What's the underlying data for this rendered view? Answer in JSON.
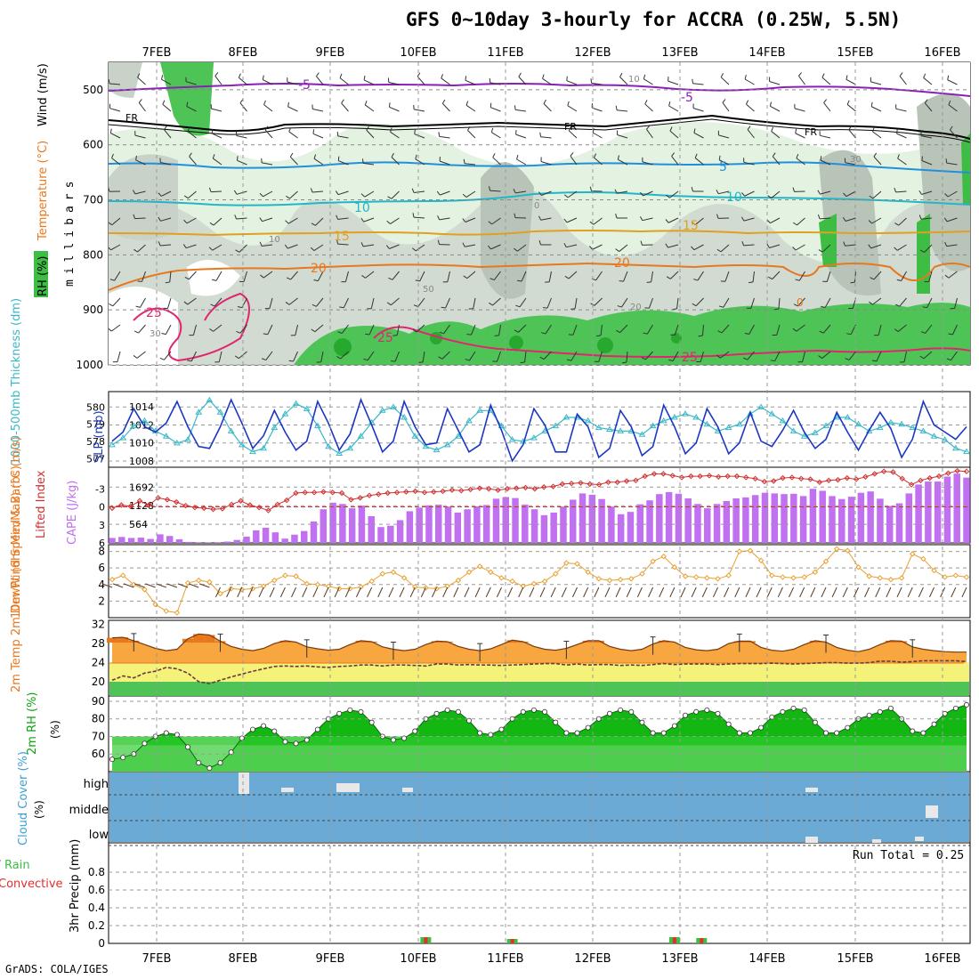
{
  "title": "GFS 0~10day 3-hourly for ACCRA (0.25W, 5.5N)",
  "credit": "GrADS: COLA/IGES",
  "colors": {
    "rh_green": "#3ebd45",
    "rh_light": "#e3f2e1",
    "rh_grey": "#c8d2c8",
    "temp_red": "#e2256f",
    "temp_orange": "#e8781e",
    "temp_gold": "#e0a020",
    "temp_cyan": "#22b6c8",
    "temp_blue": "#2090dc",
    "temp_purple": "#8a1fb8",
    "slp": "#1b37c2",
    "thickness": "#3ab8c8",
    "lifted": "#d03030",
    "cape": "#c070f0",
    "wind10": "#e8a030",
    "cloud": "#6aaad4",
    "temp_fill": "#f7a640",
    "dew_fill": "#f5f27a",
    "rh2_dark": "#0fa30f",
    "rain": "#3fbe3f",
    "conv": "#e03030"
  },
  "chart_data": [
    {
      "id": "upper_air",
      "type": "contour",
      "x_dates": [
        "7FEB",
        "8FEB",
        "9FEB",
        "10FEB",
        "11FEB",
        "12FEB",
        "13FEB",
        "14FEB",
        "15FEB",
        "16FEB"
      ],
      "ylabel_parts": [
        "RH (%)",
        "Temperature (°C)",
        "Wind (m/s)"
      ],
      "yaxis_label": "millibars",
      "yticks": [
        500,
        600,
        700,
        800,
        900,
        1000
      ],
      "contour_labels": [
        "-5",
        "-5",
        "FR",
        "FR",
        "FR",
        "5",
        "10",
        "10",
        "15",
        "15",
        "20",
        "20",
        "25",
        "25",
        "25",
        "0",
        "10",
        "30",
        "50",
        "30",
        "0",
        "10",
        "20"
      ]
    },
    {
      "id": "slp_thickness",
      "type": "line",
      "ylabel_left": "1000-500mb Thickness (dm)",
      "ylabel_right": "SLP (mb)",
      "yticks_left": [
        580,
        579,
        578,
        577
      ],
      "yticks_right": [
        1014,
        1012,
        1010,
        1008
      ],
      "ylim_slp": [
        1007.5,
        1015.5
      ],
      "ylim_thick": [
        576.6,
        580.8
      ],
      "series": [
        {
          "name": "SLP",
          "values": [
            1010.2,
            1011.2,
            1013.8,
            1011.8,
            1011.2,
            1012.2,
            1014.6,
            1011.8,
            1009.6,
            1009.4,
            1011.8,
            1014.8,
            1012.2,
            1009.4,
            1010.8,
            1013.6,
            1011.2,
            1009.2,
            1010.2,
            1014.6,
            1012.2,
            1009.2,
            1011.0,
            1014.8,
            1012.0,
            1009.0,
            1010.2,
            1014.6,
            1011.8,
            1009.8,
            1010.0,
            1013.8,
            1011.4,
            1009.0,
            1009.8,
            1014.2,
            1011.4,
            1008.0,
            1009.8,
            1013.8,
            1012.0,
            1009.0,
            1009.0,
            1013.2,
            1011.8,
            1008.4,
            1009.4,
            1013.6,
            1011.8,
            1008.6,
            1009.6,
            1014.2,
            1011.8,
            1008.8,
            1010.0,
            1013.8,
            1011.8,
            1008.8,
            1010.0,
            1013.4,
            1010.2,
            1009.6,
            1011.4,
            1013.6,
            1011.2,
            1009.4,
            1010.4,
            1013.4,
            1011.2,
            1009.2,
            1011.4,
            1013.4,
            1011.6,
            1008.4,
            1010.4,
            1014.6,
            1012.0,
            1011.2,
            1010.4,
            1011.8
          ]
        },
        {
          "name": "Thickness",
          "values": [
            577.8,
            578.2,
            578.9,
            579.2,
            578.6,
            578.3,
            577.9,
            578.1,
            579.7,
            580.4,
            579.7,
            578.6,
            577.8,
            577.4,
            577.6,
            578.8,
            579.6,
            580.2,
            579.9,
            578.9,
            577.7,
            577.3,
            577.6,
            578.3,
            579.1,
            579.8,
            580.0,
            579.4,
            578.3,
            577.7,
            577.5,
            577.8,
            578.3,
            579.2,
            579.8,
            579.8,
            578.9,
            578.1,
            578.0,
            578.2,
            578.6,
            578.9,
            579.4,
            579.4,
            579.2,
            578.8,
            578.7,
            578.6,
            578.6,
            578.4,
            578.9,
            579.2,
            579.4,
            579.6,
            579.4,
            579.0,
            578.6,
            578.8,
            579.0,
            579.6,
            580.0,
            579.6,
            579.2,
            578.6,
            578.3,
            578.5,
            578.9,
            579.4,
            579.4,
            579.0,
            578.6,
            578.8,
            579.1,
            579.0,
            578.8,
            578.6,
            578.3,
            578.1,
            577.6,
            577.4
          ]
        }
      ]
    },
    {
      "id": "cape_li",
      "type": "bar+line",
      "ylabel_left": "Lifted Index",
      "ylabel_right": "CAPE (J/kg)",
      "yticks_left": [
        "-3",
        "0",
        "3",
        "6"
      ],
      "yticks_right": [
        "1692",
        "1128",
        "564"
      ],
      "ylim_cape": [
        0,
        2240
      ],
      "ylim_li": [
        6,
        -6.3
      ],
      "series": [
        {
          "name": "CAPE",
          "values": [
            150,
            180,
            150,
            160,
            120,
            260,
            210,
            110,
            30,
            20,
            10,
            20,
            40,
            90,
            190,
            380,
            460,
            320,
            130,
            250,
            360,
            650,
            1020,
            1220,
            1180,
            1050,
            1130,
            810,
            480,
            520,
            690,
            960,
            1070,
            1140,
            1160,
            1100,
            920,
            1020,
            1110,
            1150,
            1340,
            1390,
            1360,
            1160,
            1020,
            840,
            920,
            1100,
            1310,
            1500,
            1460,
            1330,
            1100,
            870,
            940,
            1170,
            1290,
            1480,
            1540,
            1490,
            1350,
            1180,
            1050,
            1180,
            1270,
            1350,
            1380,
            1450,
            1520,
            1500,
            1480,
            1490,
            1420,
            1640,
            1580,
            1420,
            1330,
            1400,
            1520,
            1560,
            1340,
            1120,
            1200,
            1500,
            1770,
            1860,
            1860,
            2010,
            2100,
            1980
          ]
        },
        {
          "name": "Lifted Index",
          "values": [
            0.2,
            -0.3,
            -0.1,
            -1.0,
            -0.3,
            -1.5,
            -1.2,
            -0.8,
            -0.2,
            0.1,
            0.2,
            0.4,
            0.3,
            -0.4,
            -1.0,
            -0.3,
            0.1,
            0.6,
            -0.4,
            -1.1,
            -2.3,
            -2.4,
            -2.4,
            -2.5,
            -2.4,
            -2.3,
            -1.2,
            -1.5,
            -1.9,
            -2.1,
            -2.3,
            -2.4,
            -2.5,
            -2.6,
            -2.4,
            -2.5,
            -2.6,
            -2.8,
            -2.7,
            -2.9,
            -3.1,
            -3.0,
            -2.8,
            -3.0,
            -3.1,
            -3.2,
            -3.0,
            -3.3,
            -3.4,
            -3.8,
            -3.9,
            -4.0,
            -3.8,
            -3.7,
            -4.1,
            -4.1,
            -4.3,
            -4.4,
            -5.1,
            -5.5,
            -5.5,
            -5.2,
            -4.9,
            -5.1,
            -5.1,
            -5.2,
            -5.0,
            -5.1,
            -5.1,
            -4.9,
            -4.7,
            -4.2,
            -4.3,
            -4.8,
            -4.9,
            -4.7,
            -4.6,
            -4.1,
            -4.4,
            -4.5,
            -4.8,
            -4.6,
            -5.0,
            -5.5,
            -5.9,
            -5.8,
            -4.7,
            -3.7,
            -4.4,
            -4.8,
            -5.1,
            -5.6,
            -6.0,
            -5.9
          ]
        }
      ]
    },
    {
      "id": "wind10m",
      "type": "line+barbs",
      "ylabel": "10m Wind Speed & Barbs (m/s)",
      "yticks": [
        8,
        6,
        4,
        2
      ],
      "ylim": [
        0,
        8.6
      ],
      "values": [
        4.6,
        5.1,
        4.0,
        3.4,
        1.6,
        0.8,
        0.6,
        4.2,
        4.5,
        4.3,
        2.9,
        3.5,
        3.4,
        3.5,
        3.8,
        4.5,
        5.1,
        5.0,
        4.1,
        4.0,
        3.8,
        3.5,
        3.5,
        3.7,
        4.4,
        5.3,
        5.5,
        4.8,
        3.7,
        3.6,
        3.5,
        3.8,
        4.5,
        5.5,
        6.2,
        5.5,
        4.8,
        4.4,
        3.8,
        4.1,
        4.4,
        5.3,
        6.6,
        6.5,
        5.5,
        4.7,
        4.5,
        4.6,
        4.7,
        5.3,
        6.8,
        7.4,
        6.1,
        5.0,
        4.9,
        4.8,
        4.7,
        5.1,
        8.0,
        8.1,
        6.9,
        5.1,
        4.9,
        4.8,
        4.9,
        5.5,
        6.8,
        8.3,
        8.1,
        6.1,
        5.0,
        4.8,
        4.6,
        4.8,
        7.7,
        7.1,
        5.7,
        4.9,
        5.1,
        4.9
      ]
    },
    {
      "id": "temp2m",
      "type": "area",
      "ylabel": "2m Temp 2m DewPt (6hr Min/Max) (°C)",
      "yticks": [
        32,
        28,
        24,
        20
      ],
      "ylim": [
        17,
        32.5
      ],
      "series": [
        {
          "name": "2m Temp",
          "values": [
            29.2,
            29.3,
            28.6,
            27.8,
            27.0,
            26.5,
            26.8,
            29.0,
            30.0,
            29.8,
            28.5,
            27.4,
            26.8,
            26.5,
            27.0,
            28.0,
            28.6,
            28.3,
            27.3,
            26.9,
            26.6,
            26.8,
            27.8,
            28.6,
            28.4,
            27.3,
            26.8,
            26.5,
            26.8,
            27.8,
            28.5,
            28.4,
            27.4,
            26.8,
            26.5,
            26.9,
            27.8,
            28.7,
            28.4,
            27.4,
            26.8,
            26.6,
            27.0,
            27.8,
            28.6,
            28.6,
            27.4,
            26.8,
            26.5,
            26.8,
            27.9,
            28.6,
            28.3,
            27.2,
            26.7,
            26.5,
            26.8,
            28.0,
            28.5,
            28.5,
            27.2,
            26.6,
            26.4,
            26.8,
            27.8,
            28.6,
            28.3,
            27.2,
            26.6,
            26.3,
            26.8,
            27.8,
            28.6,
            28.5,
            27.3,
            26.8,
            26.5,
            26.3,
            26.2,
            26.2
          ]
        },
        {
          "name": "2m DewPt",
          "values": [
            20.3,
            21.2,
            20.8,
            21.8,
            22.2,
            23.0,
            22.7,
            21.8,
            20.0,
            19.6,
            20.3,
            21.0,
            21.6,
            22.2,
            22.7,
            23.2,
            23.3,
            23.2,
            23.3,
            23.1,
            23.0,
            23.2,
            23.3,
            23.5,
            23.5,
            23.3,
            23.5,
            23.5,
            23.4,
            23.3,
            23.7,
            23.7,
            23.5,
            23.6,
            23.5,
            23.5,
            23.4,
            23.5,
            23.6,
            23.7,
            23.8,
            23.8,
            23.5,
            23.7,
            23.5,
            23.6,
            23.6,
            23.4,
            23.5,
            23.4,
            23.6,
            23.8,
            23.6,
            23.7,
            23.7,
            23.7,
            23.6,
            23.7,
            23.8,
            23.8,
            23.8,
            23.9,
            23.8,
            23.7,
            23.8,
            23.9,
            24.0,
            24.0,
            23.9,
            23.9,
            24.0,
            24.3,
            24.3,
            24.1,
            24.2,
            24.4,
            24.4,
            24.4,
            24.4,
            24.2
          ]
        }
      ]
    },
    {
      "id": "rh2m",
      "type": "area",
      "ylabel": "2m RH (%)",
      "yticks": [
        90,
        80,
        70,
        60
      ],
      "ylim": [
        50,
        92
      ],
      "values": [
        57,
        58,
        60,
        66,
        70,
        72,
        71,
        64,
        55,
        52,
        55,
        61,
        69,
        74,
        76,
        73,
        67,
        66,
        68,
        74,
        80,
        83,
        85,
        84,
        78,
        70,
        68,
        69,
        73,
        80,
        83,
        85,
        84,
        79,
        72,
        71,
        74,
        80,
        84,
        85,
        84,
        78,
        72,
        72,
        75,
        80,
        83,
        85,
        84,
        78,
        72,
        72,
        76,
        82,
        84,
        85,
        83,
        77,
        72,
        72,
        75,
        81,
        84,
        86,
        85,
        78,
        72,
        72,
        75,
        80,
        82,
        84,
        86,
        80,
        73,
        72,
        77,
        83,
        86,
        88
      ]
    },
    {
      "id": "cloud",
      "type": "band",
      "ylabel": "Cloud Cover (%)",
      "levels": [
        "high",
        "middle",
        "low"
      ]
    },
    {
      "id": "precip",
      "type": "bar",
      "ylabel_main": "3hr Precip (mm)",
      "ylabel_rain": "Total / Rain",
      "ylabel_conv": "Convective",
      "yticks": [
        "0.8",
        "0.6",
        "0.4",
        "0.2",
        "0"
      ],
      "ylim": [
        0,
        1.0
      ],
      "run_total": "Run Total = 0.25",
      "bars": [
        {
          "x": 29.0,
          "total": 0.07,
          "conv": 0.07
        },
        {
          "x": 37.0,
          "total": 0.05,
          "conv": 0.05
        },
        {
          "x": 52.0,
          "total": 0.07,
          "conv": 0.07
        },
        {
          "x": 54.5,
          "total": 0.06,
          "conv": 0.06
        }
      ]
    }
  ]
}
